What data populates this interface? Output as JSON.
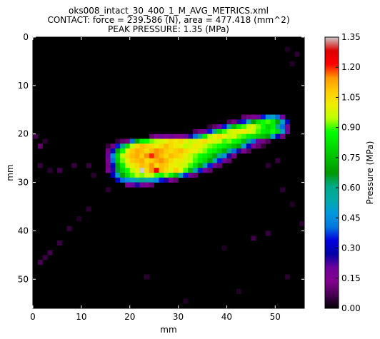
{
  "chart_data": {
    "type": "heatmap",
    "title_lines": [
      "oks008_intact_30_400_1_M_AVG_METRICS.xml",
      "CONTACT: force = 239.586 (N), area = 477.418 (mm^2)",
      "PEAK PRESSURE: 1.35 (MPa)"
    ],
    "xlabel": "mm",
    "ylabel": "mm",
    "xlim": [
      0,
      56
    ],
    "ylim": [
      56,
      0
    ],
    "x_ticks": [
      "0",
      "10",
      "20",
      "30",
      "40",
      "50"
    ],
    "y_ticks": [
      "0",
      "10",
      "20",
      "30",
      "40",
      "50"
    ],
    "colorbar": {
      "label": "Pressure (MPa)",
      "range": [
        0.0,
        1.35
      ],
      "ticks": [
        "0.00",
        "0.15",
        "0.30",
        "0.45",
        "0.60",
        "0.75",
        "0.90",
        "1.05",
        "1.20",
        "1.35"
      ],
      "colormap": "nipy_spectral"
    },
    "background_value": 0.0,
    "peak_value": 1.35,
    "rows": [
      {
        "y": 16,
        "x0": 43,
        "values": [
          0.1,
          0.12,
          0.15,
          0.2,
          0.35,
          0.45,
          0.5,
          0.4,
          0.2
        ]
      },
      {
        "y": 17,
        "x0": 40,
        "values": [
          0.08,
          0.12,
          0.25,
          0.35,
          0.55,
          0.7,
          0.82,
          0.88,
          0.9,
          0.85,
          0.7,
          0.5,
          0.3
        ]
      },
      {
        "y": 18,
        "x0": 36,
        "values": [
          0.05,
          0.1,
          0.2,
          0.35,
          0.55,
          0.75,
          0.85,
          0.9,
          0.95,
          0.98,
          0.92,
          0.88,
          0.8,
          0.85,
          0.6,
          0.4,
          0.15
        ]
      },
      {
        "y": 19,
        "x0": 33,
        "values": [
          0.08,
          0.12,
          0.2,
          0.35,
          0.6,
          0.8,
          0.9,
          0.95,
          0.98,
          1.0,
          1.02,
          0.98,
          0.95,
          0.9,
          0.85,
          0.82,
          0.88,
          0.8,
          0.5,
          0.2
        ]
      },
      {
        "y": 20,
        "x0": 24,
        "values": [
          0.1,
          0.15,
          0.2,
          0.15,
          0.2,
          0.15,
          0.15,
          0.2,
          0.25,
          0.4,
          0.6,
          0.85,
          0.95,
          1.0,
          1.05,
          1.0,
          0.95,
          0.98,
          0.92,
          0.9,
          0.85,
          0.82,
          0.78,
          0.75,
          0.7,
          0.5,
          0.3,
          0.12
        ]
      },
      {
        "y": 21,
        "x0": 17,
        "values": [
          0.05,
          0.1,
          0.12,
          0.4,
          0.7,
          0.85,
          0.88,
          0.92,
          0.95,
          0.98,
          1.0,
          1.05,
          1.02,
          1.05,
          1.0,
          0.95,
          0.98,
          1.02,
          1.05,
          1.0,
          0.98,
          0.95,
          0.9,
          0.92,
          0.88,
          0.85,
          0.75,
          0.6,
          0.4,
          0.2,
          0.12,
          0.08
        ]
      },
      {
        "y": 22,
        "x0": 15,
        "values": [
          0.05,
          0.12,
          0.35,
          0.6,
          0.82,
          0.95,
          1.05,
          1.1,
          1.08,
          1.05,
          1.0,
          1.05,
          1.1,
          1.05,
          1.02,
          1.0,
          0.95,
          0.98,
          1.02,
          1.0,
          0.95,
          0.92,
          0.9,
          0.88,
          0.85,
          0.8,
          0.75,
          0.7,
          0.5,
          0.3,
          0.15,
          0.1,
          0.05
        ]
      },
      {
        "y": 23,
        "x0": 15,
        "values": [
          0.12,
          0.3,
          0.7,
          0.88,
          1.0,
          1.08,
          1.12,
          1.1,
          1.05,
          1.1,
          1.15,
          1.12,
          1.08,
          1.05,
          1.08,
          1.1,
          1.05,
          1.02,
          1.0,
          0.95,
          0.92,
          0.88,
          0.85,
          0.8,
          0.72,
          0.6,
          0.4,
          0.25,
          0.15,
          0.08
        ]
      },
      {
        "y": 24,
        "x0": 15,
        "values": [
          0.2,
          0.45,
          0.8,
          0.95,
          1.05,
          1.1,
          1.12,
          1.08,
          1.15,
          1.2,
          1.15,
          1.1,
          1.05,
          1.1,
          1.08,
          1.05,
          1.0,
          0.95,
          0.92,
          0.88,
          0.85,
          0.8,
          0.7,
          0.6,
          0.45,
          0.25,
          0.12
        ]
      },
      {
        "y": 25,
        "x0": 15,
        "values": [
          0.15,
          0.4,
          0.78,
          0.92,
          1.0,
          1.08,
          1.1,
          1.12,
          1.05,
          1.08,
          1.12,
          1.15,
          1.1,
          1.05,
          1.0,
          1.02,
          0.98,
          0.95,
          0.9,
          0.85,
          0.8,
          0.7,
          0.55,
          0.35,
          0.2,
          0.1
        ]
      },
      {
        "y": 26,
        "x0": 15,
        "values": [
          0.12,
          0.3,
          0.7,
          0.85,
          0.95,
          1.0,
          1.05,
          1.1,
          1.08,
          1.15,
          1.05,
          1.1,
          1.08,
          1.02,
          1.0,
          0.98,
          0.95,
          0.9,
          0.82,
          0.7,
          0.55,
          0.35,
          0.2,
          0.1
        ]
      },
      {
        "y": 27,
        "x0": 15,
        "values": [
          0.15,
          0.25,
          0.65,
          0.8,
          0.88,
          0.95,
          1.0,
          1.35,
          1.05,
          1.15,
          1.25,
          1.1,
          1.05,
          1.0,
          1.08,
          1.0,
          0.9,
          0.75,
          0.55,
          0.35,
          0.2,
          0.1
        ]
      },
      {
        "y": 28,
        "x0": 16,
        "values": [
          0.3,
          0.5,
          0.7,
          0.82,
          0.9,
          0.95,
          0.92,
          0.98,
          0.95,
          0.9,
          0.88,
          0.92,
          0.85,
          0.75,
          0.55,
          0.35,
          0.2,
          0.1
        ]
      },
      {
        "y": 29,
        "x0": 17,
        "values": [
          0.3,
          0.4,
          0.45,
          0.5,
          0.55,
          0.6,
          0.55,
          0.5,
          0.45,
          0.35,
          0.25,
          0.15,
          0.1
        ]
      },
      {
        "y": 30,
        "x0": 19,
        "values": [
          0.15,
          0.2,
          0.25,
          0.2,
          0.15,
          0.1
        ]
      }
    ],
    "scatter_low": [
      [
        52,
        2,
        0.03
      ],
      [
        54,
        3,
        0.04
      ],
      [
        53,
        5,
        0.03
      ],
      [
        0,
        20,
        0.06
      ],
      [
        1,
        22,
        0.1
      ],
      [
        2,
        21,
        0.04
      ],
      [
        1,
        26,
        0.05
      ],
      [
        3,
        27,
        0.04
      ],
      [
        5,
        27,
        0.06
      ],
      [
        8,
        26,
        0.05
      ],
      [
        11,
        26,
        0.05
      ],
      [
        12,
        28,
        0.04
      ],
      [
        15,
        31,
        0.04
      ],
      [
        11,
        35,
        0.04
      ],
      [
        9,
        37,
        0.03
      ],
      [
        7,
        39,
        0.05
      ],
      [
        5,
        42,
        0.05
      ],
      [
        3,
        44,
        0.06
      ],
      [
        2,
        45,
        0.05
      ],
      [
        1,
        46,
        0.07
      ],
      [
        48,
        26,
        0.04
      ],
      [
        50,
        25,
        0.05
      ],
      [
        51,
        31,
        0.04
      ],
      [
        53,
        34,
        0.03
      ],
      [
        55,
        38,
        0.04
      ],
      [
        45,
        41,
        0.06
      ],
      [
        48,
        40,
        0.05
      ],
      [
        39,
        43,
        0.03
      ],
      [
        23,
        49,
        0.04
      ],
      [
        31,
        54,
        0.03
      ],
      [
        42,
        52,
        0.03
      ],
      [
        52,
        49,
        0.04
      ]
    ]
  }
}
